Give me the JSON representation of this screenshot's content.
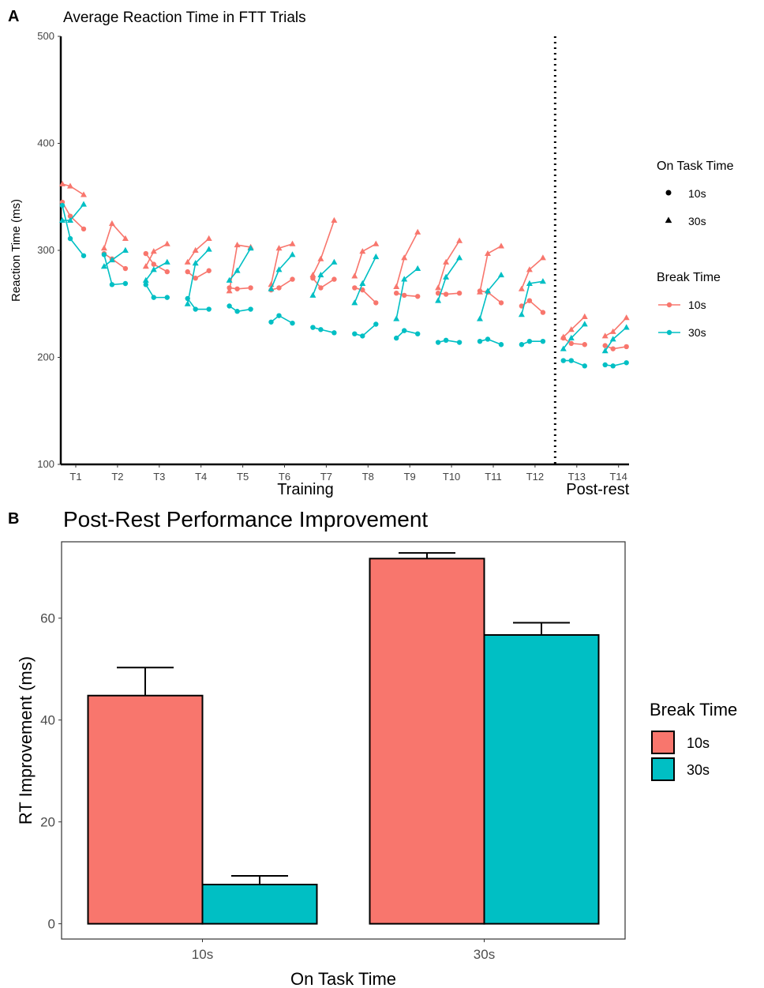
{
  "panels": {
    "a_letter": "A",
    "b_letter": "B"
  },
  "colors": {
    "break_10s": "#F8766D",
    "break_30s": "#00BFC4"
  },
  "chart_data": [
    {
      "type": "line",
      "title": "Average Reaction Time in FTT Trials",
      "xlabel": "",
      "ylabel": "Reaction Time (ms)",
      "ylim": [
        100,
        500
      ],
      "yticks": [
        100,
        200,
        300,
        400,
        500
      ],
      "categories": [
        "T1",
        "T2",
        "T3",
        "T4",
        "T5",
        "T6",
        "T7",
        "T8",
        "T9",
        "T10",
        "T11",
        "T12",
        "T13",
        "T14"
      ],
      "sections": [
        {
          "label": "Training",
          "trials": [
            "T1",
            "T12"
          ]
        },
        {
          "label": "Post-rest",
          "trials": [
            "T13",
            "T14"
          ]
        }
      ],
      "divider_after": "T12",
      "legend": {
        "shape_title": "On Task Time",
        "shape_items": [
          {
            "label": "10s",
            "shape": "circle"
          },
          {
            "label": "30s",
            "shape": "triangle"
          }
        ],
        "color_title": "Break Time",
        "color_items": [
          {
            "label": "10s",
            "color": "#F8766D"
          },
          {
            "label": "30s",
            "color": "#00BFC4"
          }
        ]
      },
      "series": [
        {
          "on_task": "10s",
          "break": "10s",
          "shape": "circle",
          "color": "#F8766D",
          "values": [
            [
              345,
              332,
              320
            ],
            [
              297,
              292,
              283
            ],
            [
              297,
              287,
              280
            ],
            [
              280,
              274,
              281
            ],
            [
              265,
              264,
              265
            ],
            [
              263,
              265,
              273
            ],
            [
              274,
              265,
              273
            ],
            [
              265,
              263,
              251
            ],
            [
              260,
              258,
              257
            ],
            [
              260,
              259,
              260
            ],
            [
              262,
              261,
              251
            ],
            [
              248,
              253,
              242
            ],
            [
              218,
              213,
              212
            ],
            [
              211,
              208,
              210
            ]
          ]
        },
        {
          "on_task": "10s",
          "break": "30s",
          "shape": "circle",
          "color": "#00BFC4",
          "values": [
            [
              342,
              311,
              295
            ],
            [
              296,
              268,
              269
            ],
            [
              268,
              256,
              256
            ],
            [
              255,
              245,
              245
            ],
            [
              248,
              243,
              245
            ],
            [
              233,
              239,
              232
            ],
            [
              228,
              226,
              223
            ],
            [
              222,
              220,
              231
            ],
            [
              218,
              225,
              222
            ],
            [
              214,
              216,
              214
            ],
            [
              215,
              217,
              212
            ],
            [
              212,
              215,
              215
            ],
            [
              197,
              197,
              192
            ],
            [
              193,
              192,
              195
            ]
          ]
        },
        {
          "on_task": "30s",
          "break": "10s",
          "shape": "triangle",
          "color": "#F8766D",
          "values": [
            [
              362,
              360,
              352
            ],
            [
              302,
              325,
              311
            ],
            [
              285,
              299,
              306
            ],
            [
              289,
              300,
              311
            ],
            [
              262,
              305,
              303
            ],
            [
              268,
              302,
              306
            ],
            [
              277,
              292,
              328
            ],
            [
              276,
              299,
              306
            ],
            [
              266,
              293,
              317
            ],
            [
              265,
              289,
              309
            ],
            [
              261,
              297,
              304
            ],
            [
              264,
              282,
              293
            ],
            [
              219,
              226,
              238
            ],
            [
              220,
              224,
              237
            ]
          ]
        },
        {
          "on_task": "30s",
          "break": "30s",
          "shape": "triangle",
          "color": "#00BFC4",
          "values": [
            [
              328,
              328,
              343
            ],
            [
              285,
              291,
              300
            ],
            [
              272,
              282,
              289
            ],
            [
              250,
              288,
              301
            ],
            [
              272,
              281,
              302
            ],
            [
              264,
              282,
              296
            ],
            [
              258,
              277,
              289
            ],
            [
              251,
              269,
              294
            ],
            [
              236,
              273,
              283
            ],
            [
              253,
              275,
              293
            ],
            [
              236,
              262,
              277
            ],
            [
              240,
              269,
              271
            ],
            [
              208,
              218,
              231
            ],
            [
              206,
              217,
              228
            ]
          ]
        }
      ]
    },
    {
      "type": "bar",
      "title": "Post-Rest Performance Improvement",
      "xlabel": "On Task Time",
      "ylabel": "RT Improvement (ms)",
      "ylim": [
        -3,
        75
      ],
      "yticks": [
        0,
        20,
        40,
        60
      ],
      "categories": [
        "10s",
        "30s"
      ],
      "legend": {
        "title": "Break Time",
        "items": [
          "10s",
          "30s"
        ]
      },
      "series": [
        {
          "name": "10s",
          "color": "#F8766D",
          "values": [
            44.8,
            71.7
          ],
          "error": [
            5.5,
            1.1
          ]
        },
        {
          "name": "30s",
          "color": "#00BFC4",
          "values": [
            7.7,
            56.7
          ],
          "error": [
            1.7,
            2.4
          ]
        }
      ]
    }
  ]
}
